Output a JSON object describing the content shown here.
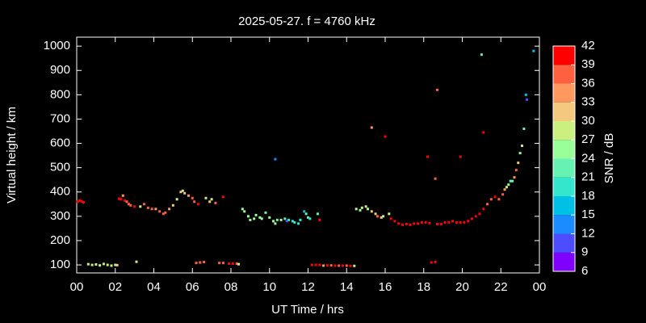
{
  "chart_data": {
    "type": "scatter",
    "title": "2025-05-27. f = 4760 kHz",
    "xlabel": "UT Time / hrs",
    "ylabel": "Virtual height / km",
    "xlim": [
      0,
      24
    ],
    "xticks": [
      {
        "value": 0,
        "label": "00"
      },
      {
        "value": 2,
        "label": "02"
      },
      {
        "value": 4,
        "label": "04"
      },
      {
        "value": 6,
        "label": "06"
      },
      {
        "value": 8,
        "label": "08"
      },
      10,
      12,
      14,
      16,
      18,
      20,
      22,
      {
        "value": 24,
        "label": "00"
      }
    ],
    "ylim": [
      67,
      1037
    ],
    "yticks": [
      100,
      200,
      300,
      400,
      500,
      600,
      700,
      800,
      900,
      1000
    ],
    "colorbar": {
      "label": "SNR / dB",
      "lim": [
        6,
        42
      ],
      "ticks": [
        6,
        9,
        12,
        15,
        18,
        21,
        24,
        27,
        30,
        33,
        36,
        39,
        42
      ],
      "colors": [
        "#8000ff",
        "#4d4dff",
        "#1a8cff",
        "#00c0e6",
        "#33e6cc",
        "#66f2b3",
        "#99ff99",
        "#ccf080",
        "#f5c880",
        "#ff9960",
        "#ff6040",
        "#ff0000"
      ]
    },
    "series": [
      {
        "x": [
          0.05,
          0.15,
          0.25,
          0.35,
          0.6,
          0.8,
          1.0,
          1.2,
          1.4,
          1.6,
          1.8,
          2.0,
          2.1,
          3.1,
          2.2,
          2.3,
          2.4,
          2.5,
          2.6,
          2.7,
          2.8,
          3.0,
          3.3,
          3.5,
          3.7,
          3.9,
          4.1,
          4.3,
          4.5,
          4.6,
          4.8,
          5.0,
          5.2,
          5.4,
          5.5,
          5.6,
          5.8,
          6.0,
          6.1,
          6.3,
          6.2,
          6.4,
          6.6,
          6.7,
          6.9,
          7.0,
          7.2,
          7.4,
          7.6,
          7.6,
          7.9,
          8.1,
          8.3,
          8.4,
          8.6,
          8.7,
          8.9,
          9.0,
          9.2,
          9.3,
          9.5,
          9.6,
          9.8,
          10.0,
          10.2,
          10.3,
          10.4,
          10.6,
          10.8,
          10.9,
          11.0,
          11.2,
          11.3,
          11.5,
          11.6,
          11.8,
          11.9,
          12.0,
          12.1,
          10.3,
          12.5,
          12.6,
          12.2,
          12.4,
          12.6,
          12.8,
          13.0,
          13.2,
          13.4,
          13.6,
          13.8,
          14.0,
          14.2,
          14.4,
          14.5,
          14.7,
          14.8,
          15.0,
          15.1,
          15.3,
          15.5,
          15.6,
          15.8,
          15.9,
          16.2,
          15.3,
          16.0,
          16.3,
          16.5,
          16.7,
          16.9,
          17.1,
          17.3,
          17.5,
          17.7,
          17.9,
          18.1,
          18.3,
          18.4,
          18.6,
          18.7,
          18.9,
          19.1,
          19.3,
          19.5,
          19.7,
          19.9,
          20.1,
          20.3,
          20.5,
          20.7,
          20.9,
          21.1,
          21.3,
          21.5,
          21.7,
          21.9,
          22.1,
          22.2,
          22.3,
          22.4,
          22.5,
          22.6,
          22.7,
          22.8,
          22.9,
          23.0,
          23.1,
          23.2,
          23.3,
          23.35,
          23.7,
          21.0,
          21.1,
          18.7,
          18.6,
          18.2,
          19.9
        ],
        "values": [
          360,
          365,
          362,
          358,
          103,
          100,
          102,
          98,
          104,
          100,
          97,
          100,
          99,
          113,
          372,
          370,
          385,
          365,
          360,
          350,
          345,
          340,
          340,
          350,
          335,
          330,
          330,
          320,
          310,
          315,
          330,
          345,
          370,
          400,
          405,
          395,
          385,
          375,
          360,
          350,
          108,
          110,
          112,
          375,
          360,
          370,
          355,
          108,
          108,
          380,
          105,
          105,
          105,
          103,
          330,
          320,
          300,
          285,
          290,
          305,
          295,
          290,
          315,
          295,
          280,
          270,
          285,
          285,
          290,
          280,
          285,
          280,
          275,
          270,
          285,
          320,
          310,
          295,
          290,
          535,
          310,
          285,
          100,
          100,
          100,
          97,
          98,
          98,
          97,
          97,
          97,
          97,
          96,
          96,
          330,
          325,
          335,
          340,
          330,
          320,
          310,
          300,
          295,
          300,
          310,
          665,
          628,
          290,
          280,
          270,
          265,
          268,
          265,
          270,
          270,
          275,
          275,
          272,
          110,
          112,
          268,
          268,
          275,
          275,
          280,
          275,
          275,
          275,
          280,
          290,
          300,
          310,
          330,
          350,
          370,
          380,
          370,
          390,
          410,
          420,
          430,
          445,
          445,
          460,
          490,
          520,
          560,
          590,
          660,
          800,
          780,
          980,
          965,
          645,
          820,
          455,
          545,
          545
        ],
        "snr": [
          40,
          40,
          40,
          40,
          28,
          28,
          29,
          28,
          27,
          28,
          29,
          28,
          30,
          28,
          40,
          40,
          34,
          40,
          38,
          37,
          38,
          40,
          28,
          36,
          38,
          36,
          34,
          36,
          38,
          36,
          34,
          32,
          28,
          30,
          28,
          32,
          34,
          36,
          38,
          40,
          38,
          36,
          38,
          28,
          30,
          28,
          36,
          38,
          38,
          40,
          39,
          39,
          38,
          28,
          26,
          26,
          24,
          25,
          24,
          24,
          25,
          24,
          22,
          24,
          25,
          24,
          22,
          24,
          22,
          9,
          20,
          18,
          20,
          18,
          20,
          15,
          21,
          22,
          18,
          12,
          22,
          39,
          40,
          40,
          40,
          33,
          40,
          38,
          40,
          38,
          40,
          38,
          40,
          27,
          27,
          24,
          27,
          27,
          26,
          30,
          32,
          36,
          30,
          28,
          27,
          34,
          40,
          39,
          40,
          39,
          40,
          39,
          39,
          40,
          39,
          39,
          40,
          39,
          40,
          40,
          39,
          40,
          39,
          39,
          40,
          39,
          39,
          40,
          39,
          39,
          40,
          39,
          39,
          38,
          37,
          39,
          38,
          37,
          33,
          27,
          24,
          22,
          22,
          33,
          36,
          30,
          24,
          27,
          21,
          15,
          9,
          15,
          22,
          39,
          36,
          36,
          39,
          39
        ]
      }
    ]
  }
}
